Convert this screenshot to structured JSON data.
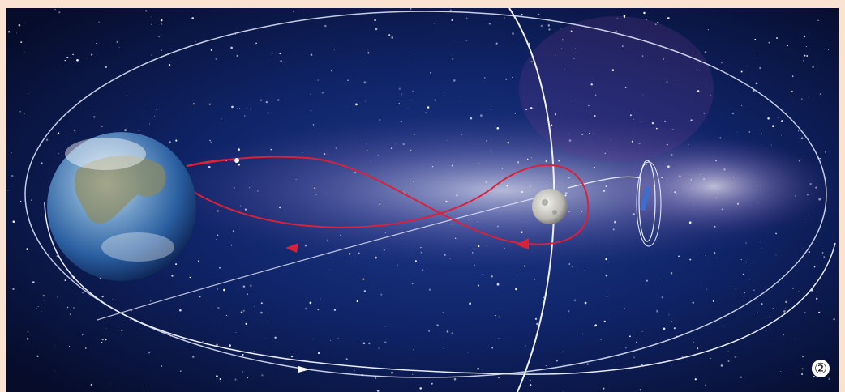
{
  "figure_label": "②"
}
